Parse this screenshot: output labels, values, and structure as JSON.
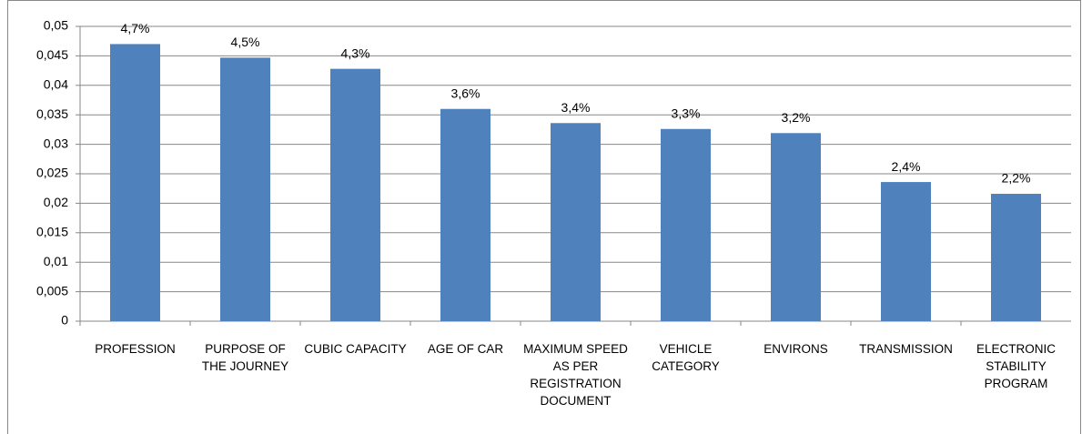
{
  "chart_data": {
    "type": "bar",
    "categories": [
      "PROFESSION",
      "PURPOSE OF THE JOURNEY",
      "CUBIC CAPACITY",
      "AGE OF CAR",
      "MAXIMUM SPEED AS PER REGISTRATION DOCUMENT",
      "VEHICLE CATEGORY",
      "ENVIRONS",
      "TRANSMISSION",
      "ELECTRONIC STABILITY PROGRAM"
    ],
    "values": [
      0.047,
      0.0447,
      0.0428,
      0.036,
      0.0336,
      0.0326,
      0.0319,
      0.0236,
      0.0216
    ],
    "value_labels": [
      "4,7%",
      "4,5%",
      "4,3%",
      "3,6%",
      "3,4%",
      "3,3%",
      "3,2%",
      "2,4%",
      "2,2%"
    ],
    "color": "#4f81bd",
    "ylim": [
      0,
      0.05
    ],
    "yticks": [
      0,
      {
        "value": 0.005,
        "label": "0,005"
      },
      {
        "value": 0.01,
        "label": "0,01"
      },
      {
        "value": 0.015,
        "label": "0,015"
      },
      {
        "value": 0.02,
        "label": "0,02"
      },
      {
        "value": 0.025,
        "label": "0,025"
      },
      {
        "value": 0.03,
        "label": "0,03"
      },
      {
        "value": 0.035,
        "label": "0,035"
      },
      {
        "value": 0.04,
        "label": "0,04"
      },
      {
        "value": 0.045,
        "label": "0,045"
      },
      {
        "value": 0.05,
        "label": "0,05"
      }
    ],
    "grid": true
  }
}
